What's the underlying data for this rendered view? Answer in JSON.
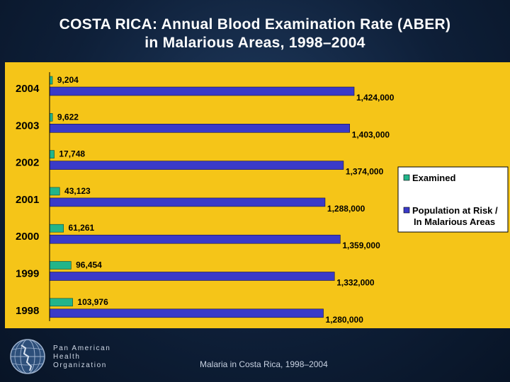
{
  "title_lines": [
    "COSTA RICA: Annual Blood Examination Rate (ABER)",
    "in Malarious Areas, 1998–2004"
  ],
  "chart_data": {
    "type": "bar",
    "orientation": "horizontal",
    "categories": [
      "2004",
      "2003",
      "2002",
      "2001",
      "2000",
      "1999",
      "1998"
    ],
    "series": [
      {
        "name": "Examined",
        "values": [
          9204,
          9622,
          17748,
          43123,
          61261,
          96454,
          103976
        ],
        "labels": [
          "9,204",
          "9,622",
          "17,748",
          "43,123",
          "61,261",
          "96,454",
          "103,976"
        ],
        "color": "#22b58a"
      },
      {
        "name": "Population at Risk / In Malarious Areas",
        "values": [
          1424000,
          1403000,
          1374000,
          1288000,
          1359000,
          1332000,
          1280000
        ],
        "labels": [
          "1,424,000",
          "1,403,000",
          "1,374,000",
          "1,288,000",
          "1,359,000",
          "1,332,000",
          "1,280,000"
        ],
        "color": "#3a3ac8"
      }
    ],
    "legend": {
      "position": "right",
      "entries": [
        "Examined",
        "Population at Risk / In Malarious Areas"
      ],
      "label_lines": [
        [
          "Examined"
        ],
        [
          "Population at Risk /",
          "In Malarious Areas"
        ]
      ]
    },
    "background_color": "#f5c518",
    "grid": false
  },
  "footer": {
    "org_lines": [
      "Pan American",
      "Health",
      "Organization"
    ],
    "caption": "Malaria in Costa Rica, 1998–2004"
  }
}
